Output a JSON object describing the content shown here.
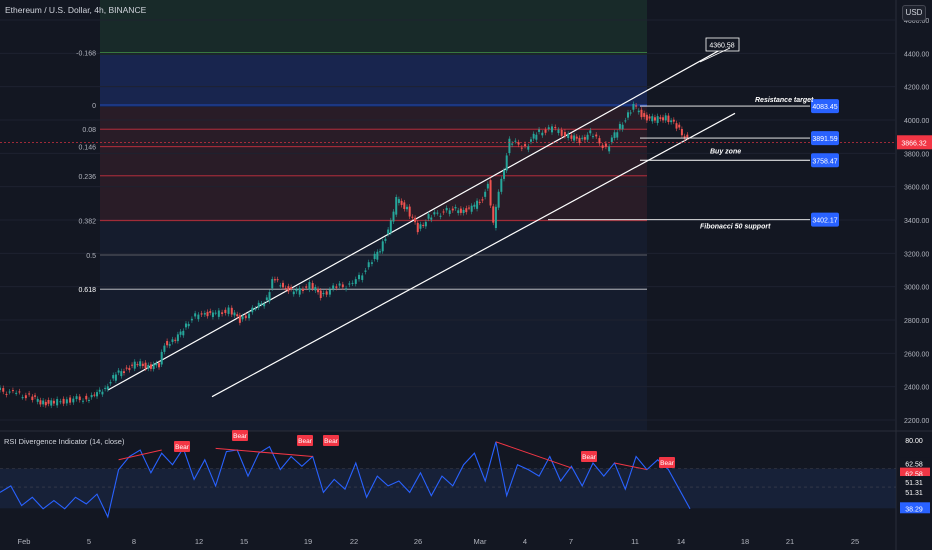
{
  "header": {
    "title": "Ethereum / U.S. Dollar, 4h, BINANCE",
    "currency": "USD"
  },
  "rsi_panel": {
    "title": "RSI Divergence Indicator (14, close)"
  },
  "chart_data": [
    {
      "type": "candlestick",
      "title": "Ethereum / U.S. Dollar, 4h, BINANCE",
      "y_axis_ticks": [
        "4600.00",
        "4400.00",
        "4200.00",
        "4000.00",
        "3800.00",
        "3600.00",
        "3400.00",
        "3200.00",
        "3000.00",
        "2800.00",
        "2600.00",
        "2400.00",
        "2200.00"
      ],
      "x_axis_ticks": [
        "Feb",
        "5",
        "8",
        "12",
        "15",
        "19",
        "22",
        "26",
        "Mar",
        "4",
        "7",
        "11",
        "14",
        "18",
        "21",
        "25",
        "28"
      ],
      "ylim": [
        2200,
        4700
      ],
      "current_price": "3866.32",
      "close_path": [
        [
          0,
          2380
        ],
        [
          3,
          2360
        ],
        [
          6,
          2340
        ],
        [
          8,
          2310
        ],
        [
          10,
          2300
        ],
        [
          13,
          2320
        ],
        [
          16,
          2330
        ],
        [
          18,
          2340
        ],
        [
          20,
          2400
        ],
        [
          22,
          2470
        ],
        [
          24,
          2510
        ],
        [
          26,
          2540
        ],
        [
          28,
          2520
        ],
        [
          30,
          2530
        ],
        [
          31,
          2660
        ],
        [
          33,
          2670
        ],
        [
          35,
          2780
        ],
        [
          38,
          2850
        ],
        [
          40,
          2830
        ],
        [
          43,
          2860
        ],
        [
          45,
          2800
        ],
        [
          48,
          2870
        ],
        [
          50,
          2930
        ],
        [
          51,
          3040
        ],
        [
          53,
          3010
        ],
        [
          55,
          2960
        ],
        [
          58,
          3010
        ],
        [
          60,
          2950
        ],
        [
          63,
          3000
        ],
        [
          66,
          3010
        ],
        [
          69,
          3130
        ],
        [
          71,
          3230
        ],
        [
          73,
          3380
        ],
        [
          74,
          3520
        ],
        [
          76,
          3470
        ],
        [
          78,
          3340
        ],
        [
          80,
          3420
        ],
        [
          84,
          3460
        ],
        [
          86,
          3460
        ],
        [
          88,
          3470
        ],
        [
          90,
          3530
        ],
        [
          91,
          3630
        ],
        [
          92,
          3370
        ],
        [
          93,
          3560
        ],
        [
          95,
          3870
        ],
        [
          98,
          3840
        ],
        [
          100,
          3920
        ],
        [
          103,
          3950
        ],
        [
          106,
          3900
        ],
        [
          108,
          3880
        ],
        [
          110,
          3920
        ],
        [
          113,
          3830
        ],
        [
          115,
          3940
        ],
        [
          117,
          4030
        ],
        [
          118,
          4080
        ],
        [
          120,
          4020
        ],
        [
          122,
          4000
        ],
        [
          124,
          4020
        ],
        [
          126,
          3960
        ],
        [
          128,
          3880
        ]
      ],
      "fibonacci_levels": [
        {
          "label": "0.236",
          "value": 3665
        },
        {
          "label": "0.382",
          "value": 3398
        },
        {
          "label": "0.5",
          "value": 3190
        },
        {
          "label": "0.618",
          "value": 2985
        },
        {
          "label": "0",
          "value": 4090
        },
        {
          "label": "-0.168",
          "value": 4405
        },
        {
          "label": "0.08",
          "value": 3945
        },
        {
          "label": "0.146",
          "value": 3840
        }
      ],
      "annotations": [
        {
          "text": "Resistance target",
          "price": "4083.45",
          "price_value": 4083.45
        },
        {
          "text": "",
          "price": "3891.59",
          "price_value": 3891.59
        },
        {
          "text": "Buy zone",
          "price": "3758.47",
          "price_value": 3758.47
        },
        {
          "text": "Fibonacci 50 support",
          "price": "3402.17",
          "price_value": 3402.17
        },
        {
          "text": "",
          "price": "4360.58",
          "price_value": 4360.58
        }
      ]
    },
    {
      "type": "line",
      "title": "RSI Divergence Indicator (14, close)",
      "y_axis_ticks": [
        "80.00",
        "62.58",
        "51.31",
        "38.29"
      ],
      "ylim": [
        25,
        85
      ],
      "rsi_path": [
        [
          0,
          48
        ],
        [
          2,
          52
        ],
        [
          4,
          40
        ],
        [
          6,
          45
        ],
        [
          8,
          38
        ],
        [
          10,
          43
        ],
        [
          12,
          38
        ],
        [
          14,
          45
        ],
        [
          16,
          41
        ],
        [
          18,
          47
        ],
        [
          20,
          33
        ],
        [
          22,
          62
        ],
        [
          24,
          70
        ],
        [
          26,
          74
        ],
        [
          28,
          60
        ],
        [
          30,
          72
        ],
        [
          32,
          65
        ],
        [
          34,
          75
        ],
        [
          36,
          56
        ],
        [
          38,
          68
        ],
        [
          40,
          52
        ],
        [
          42,
          73
        ],
        [
          44,
          74
        ],
        [
          46,
          58
        ],
        [
          48,
          72
        ],
        [
          50,
          76
        ],
        [
          52,
          62
        ],
        [
          54,
          70
        ],
        [
          56,
          64
        ],
        [
          58,
          70
        ],
        [
          60,
          48
        ],
        [
          62,
          56
        ],
        [
          64,
          50
        ],
        [
          66,
          66
        ],
        [
          68,
          45
        ],
        [
          70,
          58
        ],
        [
          72,
          52
        ],
        [
          74,
          55
        ],
        [
          76,
          48
        ],
        [
          78,
          60
        ],
        [
          80,
          46
        ],
        [
          82,
          58
        ],
        [
          84,
          52
        ],
        [
          86,
          65
        ],
        [
          88,
          72
        ],
        [
          90,
          55
        ],
        [
          92,
          79
        ],
        [
          94,
          46
        ],
        [
          96,
          65
        ],
        [
          98,
          62
        ],
        [
          100,
          58
        ],
        [
          102,
          70
        ],
        [
          104,
          55
        ],
        [
          106,
          64
        ],
        [
          108,
          52
        ],
        [
          110,
          66
        ],
        [
          112,
          58
        ],
        [
          114,
          66
        ],
        [
          116,
          50
        ],
        [
          118,
          70
        ],
        [
          120,
          62
        ],
        [
          122,
          68
        ],
        [
          124,
          62
        ],
        [
          126,
          50
        ],
        [
          128,
          38
        ]
      ],
      "signals": [
        {
          "label": "Bear"
        },
        {
          "label": "Bear"
        },
        {
          "label": "Bear"
        },
        {
          "label": "Bear"
        },
        {
          "label": "Bear"
        },
        {
          "label": "Bear"
        }
      ],
      "levels": [
        "62.58",
        "62.58",
        "51.31",
        "51.31",
        "38.29"
      ]
    }
  ]
}
